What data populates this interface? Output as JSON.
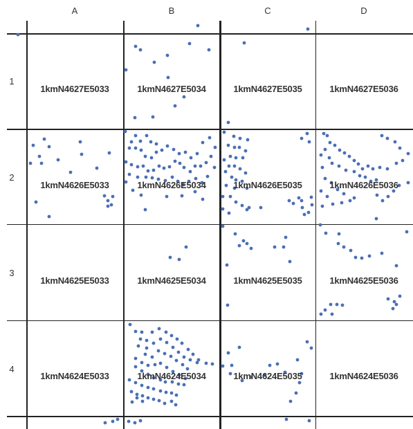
{
  "grid": {
    "columns": [
      "A",
      "B",
      "C",
      "D"
    ],
    "rows": [
      "1",
      "2",
      "3",
      "4"
    ],
    "cells": [
      [
        "1kmN4627E5033",
        "1kmN4627E5034",
        "1kmN4627E5035",
        "1kmN4627E5036"
      ],
      [
        "1kmN4626E5033",
        "1kmN4626E5034",
        "1kmN4626E5035",
        "1kmN4626E5036"
      ],
      [
        "1kmN4625E5033",
        "1kmN4625E5034",
        "1kmN4625E5035",
        "1kmN4625E5036"
      ],
      [
        "1kmN4624E5033",
        "1kmN4624E5034",
        "1kmN4624E5035",
        "1kmN4624E5036"
      ]
    ]
  },
  "points": {
    "color": "#4a6fb5",
    "description_note": "",
    "A1": [
      [
        0.02,
        0.0
      ]
    ],
    "A2": [
      [
        0.08,
        0.17
      ],
      [
        0.2,
        0.1
      ],
      [
        0.25,
        0.2
      ],
      [
        0.05,
        0.35
      ],
      [
        0.14,
        0.3
      ],
      [
        0.2,
        0.45
      ],
      [
        0.28,
        0.5
      ],
      [
        0.35,
        0.32
      ],
      [
        0.48,
        0.48
      ],
      [
        0.55,
        0.15
      ],
      [
        0.58,
        0.28
      ],
      [
        0.72,
        0.4
      ],
      [
        0.85,
        0.25
      ],
      [
        0.1,
        0.78
      ],
      [
        0.25,
        0.92
      ],
      [
        0.8,
        0.7
      ],
      [
        0.83,
        0.78
      ],
      [
        0.85,
        0.83
      ],
      [
        0.88,
        0.72
      ],
      [
        0.9,
        0.8
      ]
    ]
  }
}
